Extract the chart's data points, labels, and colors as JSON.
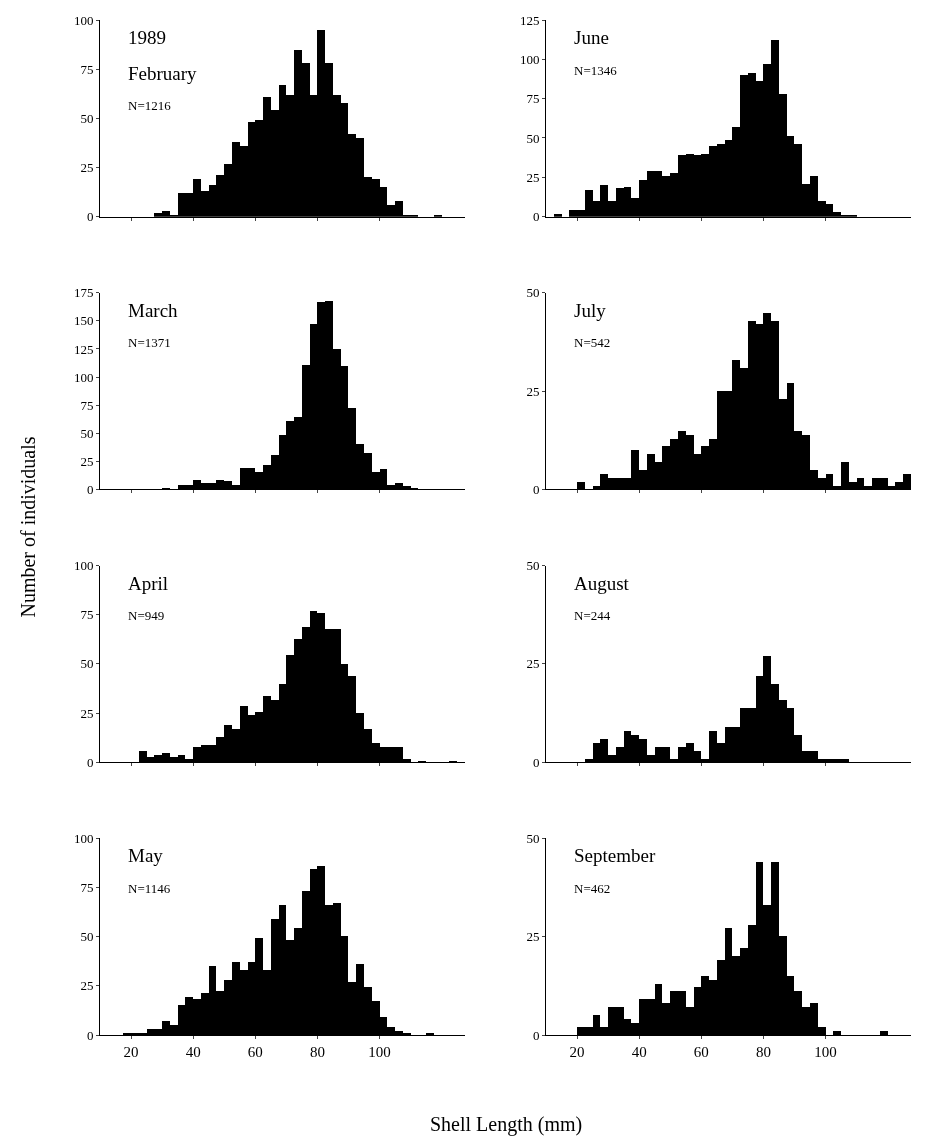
{
  "chart_data": [
    {
      "type": "histogram",
      "color": "#000000",
      "annotations": [
        "1989",
        "February",
        "N=1216"
      ],
      "xlim": [
        10,
        127.5
      ],
      "xticks": [
        20,
        40,
        60,
        80,
        100
      ],
      "ylim": [
        0,
        100
      ],
      "yticks": [
        0,
        25,
        50,
        75,
        100
      ],
      "tick_labels": "y",
      "bins": [
        10,
        12.5,
        15,
        17.5,
        20,
        22.5,
        25,
        27.5,
        30,
        32.5,
        35,
        37.5,
        40,
        42.5,
        45,
        47.5,
        50,
        52.5,
        55,
        57.5,
        60,
        62.5,
        65,
        67.5,
        70,
        72.5,
        75,
        77.5,
        80,
        82.5,
        85,
        87.5,
        90,
        92.5,
        95,
        97.5,
        100,
        102.5,
        105,
        107.5,
        110,
        112.5,
        115,
        117.5,
        120,
        122.5,
        125,
        127.5
      ],
      "values": [
        0,
        0,
        0,
        0,
        0,
        0,
        0,
        2,
        3,
        1,
        12,
        12,
        19,
        13,
        16,
        21,
        27,
        38,
        36,
        48,
        49,
        61,
        54,
        67,
        62,
        85,
        78,
        62,
        95,
        78,
        62,
        58,
        42,
        40,
        20,
        19,
        15,
        6,
        8,
        1,
        1,
        0,
        0,
        1,
        0,
        0,
        0
      ]
    },
    {
      "type": "histogram",
      "color": "#000000",
      "annotations": [
        "June",
        "N=1346"
      ],
      "xlim": [
        10,
        127.5
      ],
      "xticks": [
        20,
        40,
        60,
        80,
        100
      ],
      "ylim": [
        0,
        125
      ],
      "yticks": [
        0,
        25,
        50,
        75,
        100,
        125
      ],
      "tick_labels": "y",
      "bins": [
        10,
        12.5,
        15,
        17.5,
        20,
        22.5,
        25,
        27.5,
        30,
        32.5,
        35,
        37.5,
        40,
        42.5,
        45,
        47.5,
        50,
        52.5,
        55,
        57.5,
        60,
        62.5,
        65,
        67.5,
        70,
        72.5,
        75,
        77.5,
        80,
        82.5,
        85,
        87.5,
        90,
        92.5,
        95,
        97.5,
        100,
        102.5,
        105,
        107.5,
        110,
        112.5,
        115,
        117.5,
        120,
        122.5,
        125,
        127.5
      ],
      "values": [
        0,
        2,
        0,
        4,
        4,
        17,
        10,
        20,
        10,
        18,
        19,
        12,
        23,
        29,
        29,
        26,
        28,
        39,
        40,
        39,
        40,
        45,
        46,
        49,
        57,
        90,
        91,
        86,
        97,
        112,
        78,
        51,
        46,
        21,
        26,
        10,
        8,
        3,
        1,
        1,
        0,
        0,
        0,
        0,
        0,
        0,
        0
      ]
    },
    {
      "type": "histogram",
      "color": "#000000",
      "annotations": [
        "March",
        "N=1371"
      ],
      "ylabel": "Number of individuals",
      "xlim": [
        10,
        127.5
      ],
      "xticks": [
        20,
        40,
        60,
        80,
        100
      ],
      "ylim": [
        0,
        175
      ],
      "yticks": [
        0,
        25,
        50,
        75,
        100,
        125,
        150,
        175
      ],
      "tick_labels": "y",
      "bins": [
        10,
        12.5,
        15,
        17.5,
        20,
        22.5,
        25,
        27.5,
        30,
        32.5,
        35,
        37.5,
        40,
        42.5,
        45,
        47.5,
        50,
        52.5,
        55,
        57.5,
        60,
        62.5,
        65,
        67.5,
        70,
        72.5,
        75,
        77.5,
        80,
        82.5,
        85,
        87.5,
        90,
        92.5,
        95,
        97.5,
        100,
        102.5,
        105,
        107.5,
        110,
        112.5,
        115,
        117.5,
        120,
        122.5,
        125,
        127.5
      ],
      "values": [
        0,
        0,
        0,
        0,
        0,
        0,
        0,
        0,
        1,
        0,
        4,
        4,
        9,
        6,
        6,
        9,
        8,
        4,
        19,
        19,
        16,
        22,
        31,
        49,
        61,
        65,
        111,
        147,
        167,
        168,
        125,
        110,
        73,
        41,
        33,
        16,
        18,
        4,
        6,
        3,
        1,
        0,
        0,
        0,
        0,
        0,
        0
      ]
    },
    {
      "type": "histogram",
      "color": "#000000",
      "annotations": [
        "July",
        "N=542"
      ],
      "xlim": [
        10,
        127.5
      ],
      "xticks": [
        20,
        40,
        60,
        80,
        100
      ],
      "ylim": [
        0,
        50
      ],
      "yticks": [
        0,
        25,
        50
      ],
      "tick_labels": "y",
      "bins": [
        10,
        12.5,
        15,
        17.5,
        20,
        22.5,
        25,
        27.5,
        30,
        32.5,
        35,
        37.5,
        40,
        42.5,
        45,
        47.5,
        50,
        52.5,
        55,
        57.5,
        60,
        62.5,
        65,
        67.5,
        70,
        72.5,
        75,
        77.5,
        80,
        82.5,
        85,
        87.5,
        90,
        92.5,
        95,
        97.5,
        100,
        102.5,
        105,
        107.5,
        110,
        112.5,
        115,
        117.5,
        120,
        122.5,
        125,
        127.5
      ],
      "values": [
        0,
        0,
        0,
        0,
        2,
        0,
        1,
        4,
        3,
        3,
        3,
        10,
        5,
        9,
        7,
        11,
        13,
        15,
        14,
        9,
        11,
        13,
        25,
        25,
        33,
        31,
        43,
        42,
        45,
        43,
        23,
        27,
        15,
        14,
        5,
        3,
        4,
        1,
        7,
        2,
        3,
        1,
        3,
        3,
        1,
        2,
        4
      ]
    },
    {
      "type": "histogram",
      "color": "#000000",
      "annotations": [
        "April",
        "N=949"
      ],
      "xlim": [
        10,
        127.5
      ],
      "xticks": [
        20,
        40,
        60,
        80,
        100
      ],
      "ylim": [
        0,
        100
      ],
      "yticks": [
        0,
        25,
        50,
        75,
        100
      ],
      "tick_labels": "y",
      "bins": [
        10,
        12.5,
        15,
        17.5,
        20,
        22.5,
        25,
        27.5,
        30,
        32.5,
        35,
        37.5,
        40,
        42.5,
        45,
        47.5,
        50,
        52.5,
        55,
        57.5,
        60,
        62.5,
        65,
        67.5,
        70,
        72.5,
        75,
        77.5,
        80,
        82.5,
        85,
        87.5,
        90,
        92.5,
        95,
        97.5,
        100,
        102.5,
        105,
        107.5,
        110,
        112.5,
        115,
        117.5,
        120,
        122.5,
        125,
        127.5
      ],
      "values": [
        0,
        0,
        0,
        0,
        0,
        6,
        3,
        4,
        5,
        3,
        4,
        2,
        8,
        9,
        9,
        13,
        19,
        17,
        29,
        24,
        26,
        34,
        32,
        40,
        55,
        63,
        69,
        77,
        76,
        68,
        68,
        50,
        44,
        25,
        17,
        10,
        8,
        8,
        8,
        2,
        0,
        1,
        0,
        0,
        0,
        1,
        0
      ]
    },
    {
      "type": "histogram",
      "color": "#000000",
      "annotations": [
        "August",
        "N=244"
      ],
      "xlim": [
        10,
        127.5
      ],
      "xticks": [
        20,
        40,
        60,
        80,
        100
      ],
      "ylim": [
        0,
        50
      ],
      "yticks": [
        0,
        25,
        50
      ],
      "tick_labels": "y",
      "bins": [
        10,
        12.5,
        15,
        17.5,
        20,
        22.5,
        25,
        27.5,
        30,
        32.5,
        35,
        37.5,
        40,
        42.5,
        45,
        47.5,
        50,
        52.5,
        55,
        57.5,
        60,
        62.5,
        65,
        67.5,
        70,
        72.5,
        75,
        77.5,
        80,
        82.5,
        85,
        87.5,
        90,
        92.5,
        95,
        97.5,
        100,
        102.5,
        105,
        107.5,
        110,
        112.5,
        115,
        117.5,
        120,
        122.5,
        125,
        127.5
      ],
      "values": [
        0,
        0,
        0,
        0,
        0,
        1,
        5,
        6,
        2,
        4,
        8,
        7,
        6,
        2,
        4,
        4,
        1,
        4,
        5,
        3,
        1,
        8,
        5,
        9,
        9,
        14,
        14,
        22,
        27,
        20,
        16,
        14,
        7,
        3,
        3,
        1,
        1,
        1,
        1,
        0,
        0,
        0,
        0,
        0,
        0,
        0,
        0
      ]
    },
    {
      "type": "histogram",
      "color": "#000000",
      "annotations": [
        "May",
        "N=1146"
      ],
      "xlabel": "Shell Length (mm)",
      "xlim": [
        10,
        127.5
      ],
      "xticks": [
        20,
        40,
        60,
        80,
        100
      ],
      "ylim": [
        0,
        100
      ],
      "yticks": [
        0,
        25,
        50,
        75,
        100
      ],
      "bins": [
        10,
        12.5,
        15,
        17.5,
        20,
        22.5,
        25,
        27.5,
        30,
        32.5,
        35,
        37.5,
        40,
        42.5,
        45,
        47.5,
        50,
        52.5,
        55,
        57.5,
        60,
        62.5,
        65,
        67.5,
        70,
        72.5,
        75,
        77.5,
        80,
        82.5,
        85,
        87.5,
        90,
        92.5,
        95,
        97.5,
        100,
        102.5,
        105,
        107.5,
        110,
        112.5,
        115,
        117.5,
        120,
        122.5,
        125,
        127.5
      ],
      "values": [
        0,
        0,
        0,
        1,
        1,
        1,
        3,
        3,
        7,
        5,
        15,
        19,
        18,
        21,
        35,
        22,
        28,
        37,
        33,
        37,
        49,
        33,
        59,
        66,
        48,
        54,
        73,
        84,
        86,
        66,
        67,
        50,
        27,
        36,
        24,
        17,
        9,
        4,
        2,
        1,
        0,
        0,
        1,
        0,
        0,
        0,
        0
      ]
    },
    {
      "type": "histogram",
      "color": "#000000",
      "annotations": [
        "September",
        "N=462"
      ],
      "xlim": [
        10,
        127.5
      ],
      "xticks": [
        20,
        40,
        60,
        80,
        100
      ],
      "ylim": [
        0,
        50
      ],
      "yticks": [
        0,
        25,
        50
      ],
      "bins": [
        10,
        12.5,
        15,
        17.5,
        20,
        22.5,
        25,
        27.5,
        30,
        32.5,
        35,
        37.5,
        40,
        42.5,
        45,
        47.5,
        50,
        52.5,
        55,
        57.5,
        60,
        62.5,
        65,
        67.5,
        70,
        72.5,
        75,
        77.5,
        80,
        82.5,
        85,
        87.5,
        90,
        92.5,
        95,
        97.5,
        100,
        102.5,
        105,
        107.5,
        110,
        112.5,
        115,
        117.5,
        120,
        122.5,
        125,
        127.5
      ],
      "values": [
        0,
        0,
        0,
        0,
        2,
        2,
        5,
        2,
        7,
        7,
        4,
        3,
        9,
        9,
        13,
        8,
        11,
        11,
        7,
        12,
        15,
        14,
        19,
        27,
        20,
        22,
        28,
        44,
        33,
        44,
        25,
        15,
        11,
        7,
        8,
        2,
        0,
        1,
        0,
        0,
        0,
        0,
        0,
        1,
        0,
        0,
        0
      ]
    }
  ]
}
